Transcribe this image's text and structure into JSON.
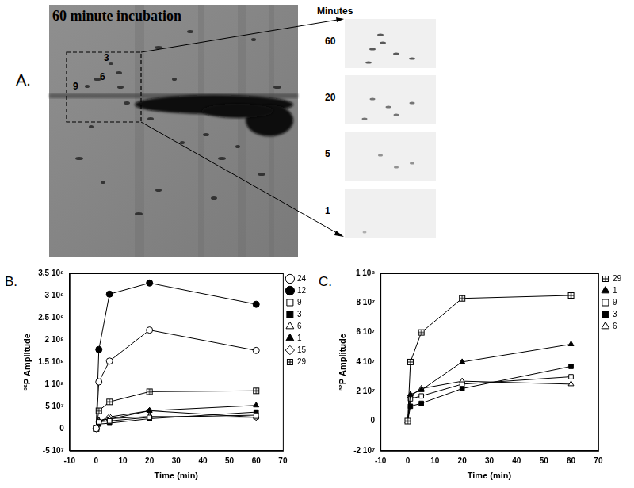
{
  "panel_a": {
    "label": "A.",
    "title": "60 minute incubation",
    "spots": [
      "3",
      "6",
      "9"
    ],
    "inset_title": "Minutes",
    "insets": [
      60,
      20,
      5,
      1
    ]
  },
  "chart_data": [
    {
      "type": "line",
      "title": "B.",
      "x_label": "Time (min)",
      "y_label": "³²P Amplitude",
      "x": [
        0,
        1,
        5,
        20,
        60
      ],
      "xlim": [
        -10,
        70
      ],
      "xticks": [
        -10,
        0,
        10,
        20,
        30,
        40,
        50,
        60,
        70
      ],
      "ylim": [
        -50000000,
        350000000
      ],
      "yticks": [
        {
          "value": -50000000,
          "label": "-5 10⁷"
        },
        0,
        {
          "value": 50000000,
          "label": "5 10⁷"
        },
        {
          "value": 100000000,
          "label": "1 10⁸"
        },
        {
          "value": 150000000,
          "label": "1.5 10⁸"
        },
        {
          "value": 200000000,
          "label": "2 10⁸"
        },
        {
          "value": 250000000,
          "label": "2.5 10⁸"
        },
        {
          "value": 300000000,
          "label": "3 10⁸"
        },
        {
          "value": 350000000,
          "label": "3.5 10⁸"
        }
      ],
      "grid": false,
      "legend": "right",
      "series": [
        {
          "name": "24",
          "color": "#000000",
          "marker": "circle_open",
          "values": [
            0,
            105000000,
            152000000,
            222000000,
            176000000
          ]
        },
        {
          "name": "12",
          "color": "#000000",
          "marker": "circle",
          "values": [
            0,
            178000000,
            303000000,
            328000000,
            280000000
          ]
        },
        {
          "name": "9",
          "color": "#000000",
          "marker": "square_open",
          "values": [
            0,
            15000000,
            17000000,
            25000000,
            30000000
          ]
        },
        {
          "name": "3",
          "color": "#000000",
          "marker": "square",
          "values": [
            0,
            10000000,
            12000000,
            22000000,
            37000000
          ]
        },
        {
          "name": "6",
          "color": "#000000",
          "marker": "triangle_open",
          "values": [
            0,
            17000000,
            22000000,
            27000000,
            25000000
          ]
        },
        {
          "name": "1",
          "color": "#000000",
          "marker": "triangle",
          "values": [
            0,
            18000000,
            21000000,
            40000000,
            52000000
          ]
        },
        {
          "name": "15",
          "color": "#000000",
          "marker": "diamond_open",
          "values": [
            0,
            16000000,
            26000000,
            40000000,
            25000000
          ]
        },
        {
          "name": "29",
          "color": "#000000",
          "marker": "square_cross",
          "values": [
            0,
            40000000,
            60000000,
            83000000,
            85000000
          ]
        }
      ]
    },
    {
      "type": "line",
      "title": "C.",
      "x_label": "Time (min)",
      "y_label": "³²P Amplitude",
      "x": [
        0,
        1,
        5,
        20,
        60
      ],
      "xlim": [
        -10,
        70
      ],
      "xticks": [
        -10,
        0,
        10,
        20,
        30,
        40,
        50,
        60,
        70
      ],
      "ylim": [
        -20000000,
        100000000
      ],
      "yticks": [
        {
          "value": -20000000,
          "label": "-2 10⁷"
        },
        0,
        {
          "value": 20000000,
          "label": "2 10⁷"
        },
        {
          "value": 40000000,
          "label": "4 10⁷"
        },
        {
          "value": 60000000,
          "label": "6 10⁷"
        },
        {
          "value": 80000000,
          "label": "8 10⁷"
        },
        {
          "value": 100000000,
          "label": "1 10⁸"
        }
      ],
      "grid": false,
      "legend": "right",
      "series": [
        {
          "name": "29",
          "color": "#000000",
          "marker": "square_cross",
          "values": [
            0,
            40000000,
            60000000,
            83000000,
            85000000
          ]
        },
        {
          "name": "1",
          "color": "#000000",
          "marker": "triangle",
          "values": [
            0,
            18000000,
            21000000,
            40000000,
            52000000
          ]
        },
        {
          "name": "9",
          "color": "#000000",
          "marker": "square_open",
          "values": [
            0,
            15000000,
            17000000,
            25000000,
            30000000
          ]
        },
        {
          "name": "3",
          "color": "#000000",
          "marker": "square",
          "values": [
            0,
            10000000,
            12000000,
            22000000,
            37000000
          ]
        },
        {
          "name": "6",
          "color": "#000000",
          "marker": "triangle_open",
          "values": [
            0,
            17000000,
            22000000,
            27000000,
            25000000
          ]
        }
      ]
    }
  ]
}
